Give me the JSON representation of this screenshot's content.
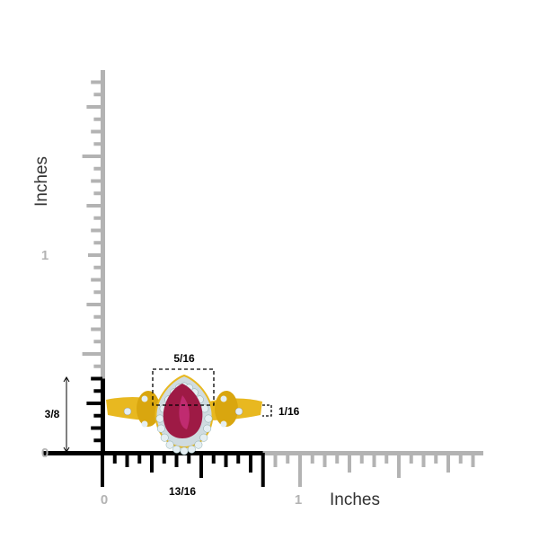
{
  "vertical_axis": {
    "title": "Inches",
    "tick_labels": [
      "0",
      "1"
    ]
  },
  "horizontal_axis": {
    "title": "Inches",
    "tick_labels": [
      "0",
      "1"
    ]
  },
  "dimensions": {
    "height": "3/8",
    "width": "13/16",
    "stone_width": "5/16",
    "band_width": "1/16"
  },
  "colors": {
    "ruler_gray": "#b3b3b3",
    "ruler_black": "#000000",
    "gold": "#e8b820",
    "ruby": "#9e1a45",
    "diamond": "#e4eef2"
  }
}
